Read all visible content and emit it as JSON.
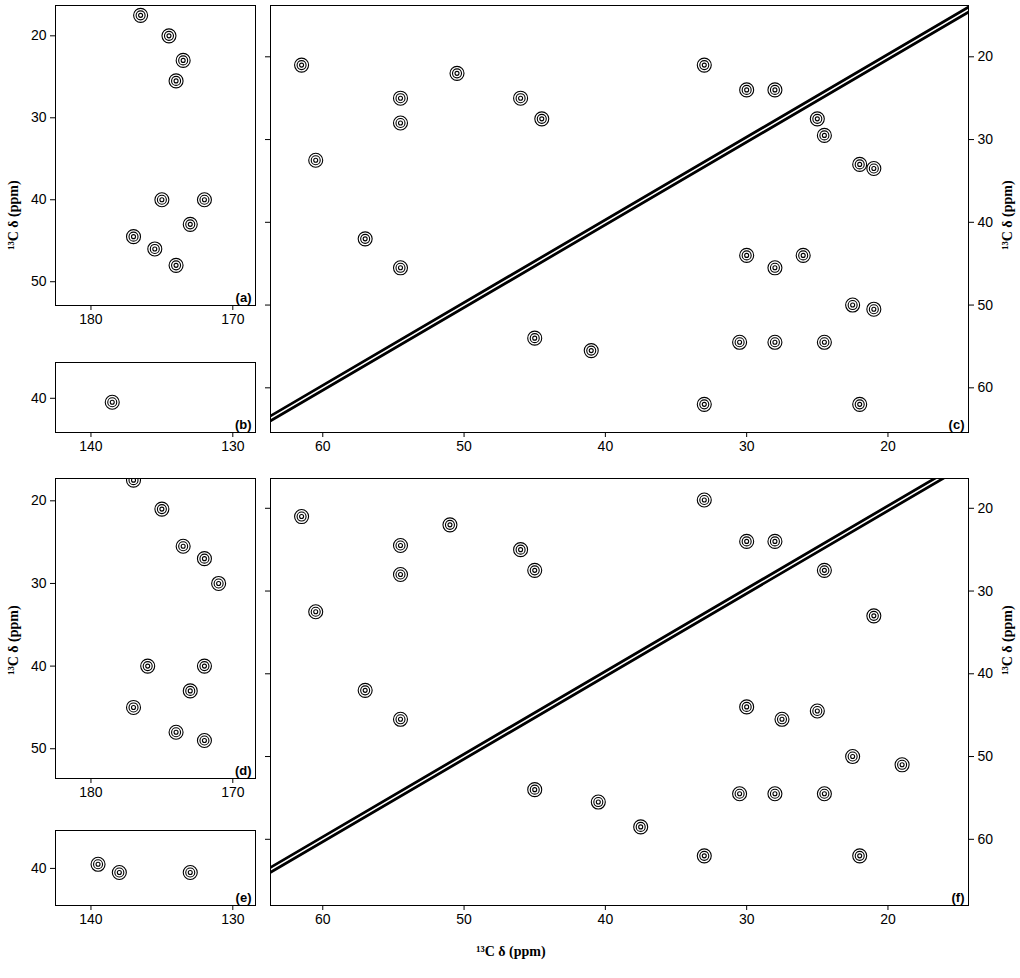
{
  "chart_data": [
    {
      "type": "scatter",
      "title": "(a)",
      "ylabel": "¹³C δ (ppm)",
      "color": "#000000",
      "xlim": [
        182.5,
        168.4
      ],
      "ylim": [
        52.9,
        16.3
      ],
      "xticks": [
        180,
        170
      ],
      "yticks": [
        20,
        30,
        40,
        50
      ],
      "x": [
        176.5,
        174.5,
        173.5,
        174,
        175,
        172,
        173,
        177,
        175.5,
        174
      ],
      "y": [
        17.5,
        20,
        23,
        25.5,
        40,
        40,
        43,
        44.5,
        46,
        48
      ]
    },
    {
      "type": "scatter",
      "title": "(b)",
      "color": "#000000",
      "xlim": [
        142.5,
        128.4
      ],
      "ylim": [
        44.3,
        35.5
      ],
      "xticks": [
        140,
        130
      ],
      "yticks": [
        40
      ],
      "x": [
        138.5
      ],
      "y": [
        40.5
      ]
    },
    {
      "type": "scatter",
      "title": "(c)",
      "ylabel": "¹³C δ (ppm)",
      "color": "#000000",
      "xlim": [
        63.7,
        14.3
      ],
      "ylim": [
        65.4,
        13.8
      ],
      "xticks": [
        60,
        50,
        40,
        30,
        20
      ],
      "yticks": [
        20,
        30,
        40,
        50,
        60
      ],
      "diagonal": {
        "x": [
          66,
          12
        ],
        "y": [
          66,
          12
        ]
      },
      "x": [
        61.5,
        60.5,
        50.5,
        54.5,
        54.5,
        46,
        44.5,
        57,
        54.5,
        45,
        41,
        33,
        33,
        30,
        28,
        25,
        24.5,
        22,
        21,
        30,
        28,
        26,
        22.5,
        21,
        30.5,
        28,
        24.5,
        22
      ],
      "y": [
        21,
        32.5,
        22,
        25,
        28,
        25,
        27.5,
        42,
        45.5,
        54,
        55.5,
        21,
        62,
        24,
        24,
        27.5,
        29.5,
        33,
        33.5,
        44,
        45.5,
        44,
        50,
        50.5,
        54.5,
        54.5,
        54.5,
        62
      ]
    },
    {
      "type": "scatter",
      "title": "(d)",
      "ylabel": "¹³C δ (ppm)",
      "color": "#000000",
      "xlim": [
        182.5,
        168.4
      ],
      "ylim": [
        53.6,
        17.3
      ],
      "xticks": [
        180,
        170
      ],
      "yticks": [
        20,
        30,
        40,
        50
      ],
      "x": [
        177,
        175,
        173.5,
        172,
        171,
        176,
        172,
        173,
        177,
        174,
        172
      ],
      "y": [
        17.5,
        21,
        25.5,
        27,
        30,
        40,
        40,
        43,
        45,
        48,
        49
      ]
    },
    {
      "type": "scatter",
      "title": "(e)",
      "color": "#000000",
      "xlim": [
        142.5,
        128.4
      ],
      "ylim": [
        44.5,
        35.4
      ],
      "xticks": [
        140,
        130
      ],
      "yticks": [
        40
      ],
      "x": [
        139.5,
        138,
        133
      ],
      "y": [
        39.5,
        40.5,
        40.5
      ]
    },
    {
      "type": "scatter",
      "title": "(f)",
      "ylabel": "¹³C δ (ppm)",
      "xlabel": "¹³C δ (ppm)",
      "color": "#000000",
      "xlim": [
        63.7,
        14.3
      ],
      "ylim": [
        68.0,
        16.4
      ],
      "xticks": [
        60,
        50,
        40,
        30,
        20
      ],
      "yticks": [
        20,
        30,
        40,
        50,
        60
      ],
      "diagonal": {
        "x": [
          66,
          12
        ],
        "y": [
          66,
          12
        ]
      },
      "x": [
        61.5,
        60.5,
        51,
        54.5,
        54.5,
        46,
        45,
        57,
        54.5,
        45,
        40.5,
        33,
        33,
        30,
        28,
        24.5,
        21,
        30,
        27.5,
        25,
        22.5,
        19,
        30.5,
        28,
        24.5,
        22,
        37.5
      ],
      "y": [
        21,
        32.5,
        22,
        24.5,
        28,
        25,
        27.5,
        42,
        45.5,
        54,
        55.5,
        19,
        62,
        24,
        24,
        27.5,
        33,
        44,
        45.5,
        44.5,
        50,
        51,
        54.5,
        54.5,
        54.5,
        62,
        58.5
      ]
    }
  ]
}
